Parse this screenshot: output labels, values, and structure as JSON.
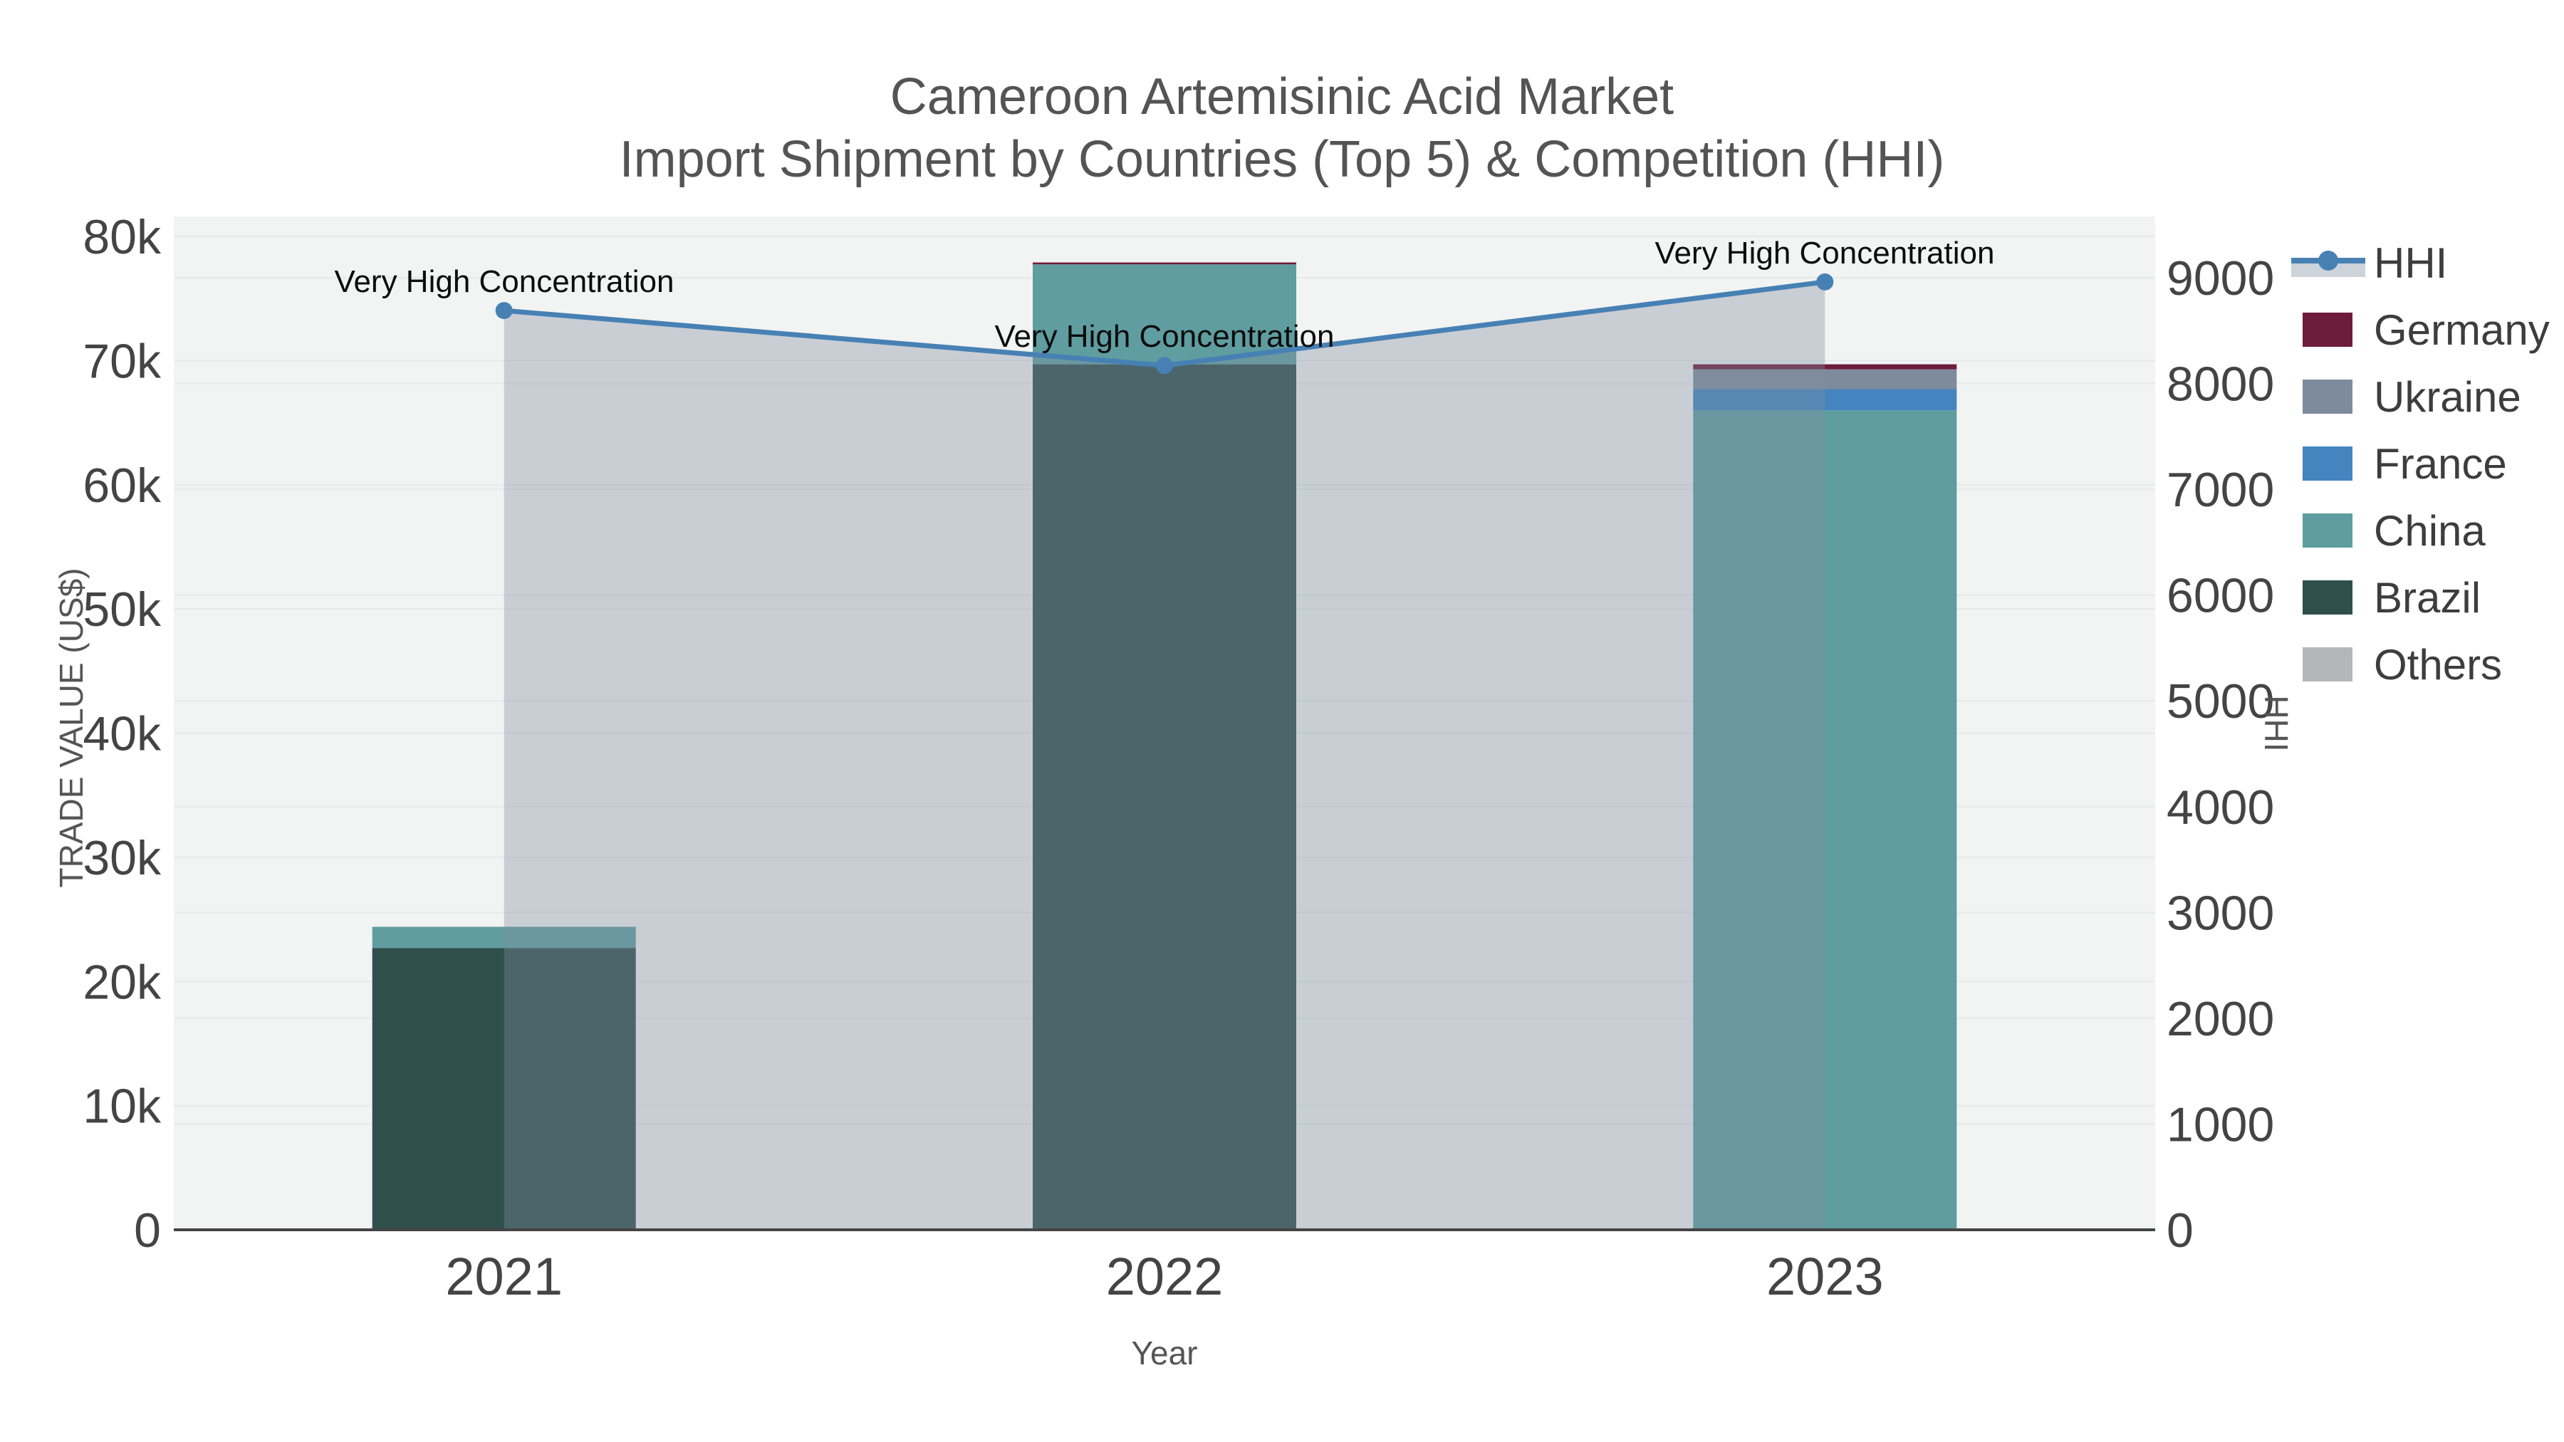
{
  "title": {
    "line1": "Cameroon Artemisinic Acid Market",
    "line2": "Import Shipment by Countries (Top 5) & Competition (HHI)"
  },
  "axis_titles": {
    "x": "Year",
    "y_left": "TRADE VALUE (US$)",
    "y_right": "HHI"
  },
  "legend": {
    "items": [
      {
        "label": "HHI"
      },
      {
        "label": "Germany"
      },
      {
        "label": "Ukraine"
      },
      {
        "label": "France"
      },
      {
        "label": "China"
      },
      {
        "label": "Brazil"
      },
      {
        "label": "Others"
      }
    ]
  },
  "chart_data": {
    "type": "bar+line",
    "title": "Cameroon Artemisinic Acid Market — Import Shipment by Countries (Top 5) & Competition (HHI)",
    "categories": [
      "2021",
      "2022",
      "2023"
    ],
    "stack_order_bottom_to_top": [
      "Others",
      "Brazil",
      "China",
      "France",
      "Ukraine",
      "Germany"
    ],
    "series": [
      {
        "name": "Others",
        "color": "#b4b7ba",
        "values": [
          0,
          0,
          0
        ]
      },
      {
        "name": "Brazil",
        "color": "#2f4f4b",
        "values": [
          22700,
          69700,
          0
        ]
      },
      {
        "name": "China",
        "color": "#5f9da0",
        "values": [
          1700,
          8050,
          66000
        ]
      },
      {
        "name": "France",
        "color": "#4484bf",
        "values": [
          0,
          0,
          1700
        ]
      },
      {
        "name": "Ukraine",
        "color": "#7d8b9c",
        "values": [
          0,
          0,
          1600
        ]
      },
      {
        "name": "Germany",
        "color": "#6d1c3c",
        "values": [
          0,
          150,
          400
        ]
      }
    ],
    "bar_totals": [
      24400,
      77900,
      69700
    ],
    "hhi": {
      "name": "HHI",
      "axis": "right",
      "color": "#4781b4",
      "band_color": "#ccd3da",
      "fill_color": "rgba(128,140,162,0.36)",
      "values": [
        8690,
        8170,
        8960
      ]
    },
    "annotations": [
      {
        "text": "Very High Concentration",
        "x": "2021"
      },
      {
        "text": "Very High Concentration",
        "x": "2022"
      },
      {
        "text": "Very High Concentration",
        "x": "2023"
      }
    ],
    "y_left": {
      "label": "TRADE VALUE (US$)",
      "range": [
        0,
        80000
      ],
      "tick_values": [
        0,
        10000,
        20000,
        30000,
        40000,
        50000,
        60000,
        70000,
        80000
      ],
      "tick_labels": [
        "0",
        "10k",
        "20k",
        "30k",
        "40k",
        "50k",
        "60k",
        "70k",
        "80k"
      ]
    },
    "y_right": {
      "label": "HHI",
      "range": [
        0,
        9000
      ],
      "tick_values": [
        0,
        1000,
        2000,
        3000,
        4000,
        5000,
        6000,
        7000,
        8000,
        9000
      ],
      "tick_labels": [
        "0",
        "1000",
        "2000",
        "3000",
        "4000",
        "5000",
        "6000",
        "7000",
        "8000",
        "9000"
      ]
    },
    "legend_order": [
      "HHI",
      "Germany",
      "Ukraine",
      "France",
      "China",
      "Brazil",
      "Others"
    ],
    "plot_bg": "#f2f3f3",
    "grid_color": "#e7e9e9",
    "axis_line_color": "#444444",
    "tick_color": "#444444"
  }
}
